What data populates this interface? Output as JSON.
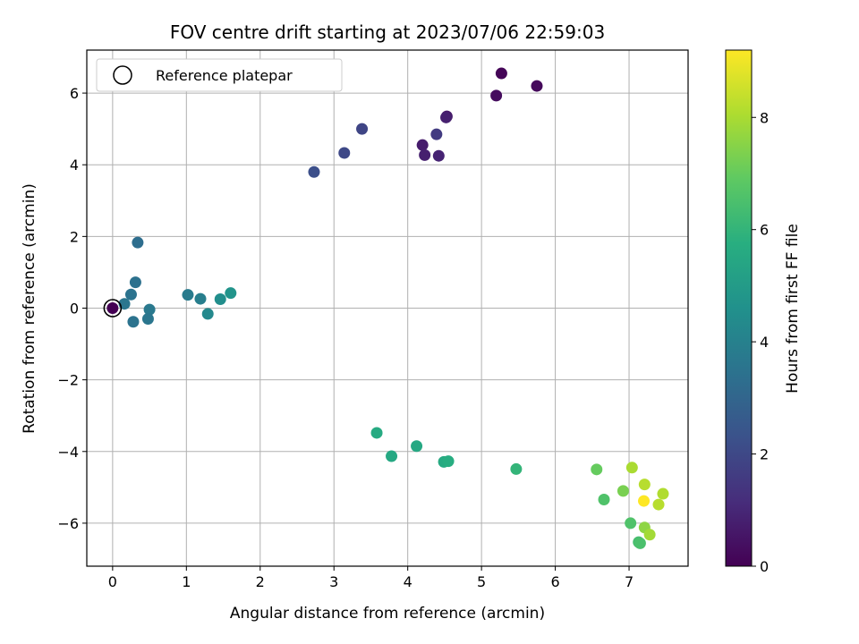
{
  "chart_data": {
    "type": "scatter",
    "title": "FOV centre drift starting at 2023/07/06 22:59:03",
    "xlabel": "Angular distance from reference (arcmin)",
    "ylabel": "Rotation from reference (arcmin)",
    "xlim": [
      -0.35,
      7.8
    ],
    "ylim": [
      -7.2,
      7.2
    ],
    "xticks": [
      0,
      1,
      2,
      3,
      4,
      5,
      6,
      7
    ],
    "yticks": [
      -6,
      -4,
      -2,
      0,
      2,
      4,
      6
    ],
    "xtick_labels": [
      "0",
      "1",
      "2",
      "3",
      "4",
      "5",
      "6",
      "7"
    ],
    "ytick_labels": [
      "−6",
      "−4",
      "−2",
      "0",
      "2",
      "4",
      "6"
    ],
    "grid": true,
    "legend": {
      "position": "top-left",
      "entries": [
        "Reference platepar"
      ]
    },
    "reference_point": {
      "x": 0.0,
      "y": 0.0
    },
    "colorbar": {
      "label": "Hours from first FF file",
      "colormap": "viridis",
      "range": [
        0,
        9.2
      ],
      "ticks": [
        0,
        2,
        4,
        6,
        8
      ],
      "tick_labels": [
        "0",
        "2",
        "4",
        "6",
        "8"
      ]
    },
    "points": [
      {
        "x": 0.0,
        "y": 0.0,
        "hours": 0.0
      },
      {
        "x": 5.27,
        "y": 6.55,
        "hours": 0.1
      },
      {
        "x": 5.75,
        "y": 6.2,
        "hours": 0.2
      },
      {
        "x": 5.2,
        "y": 5.93,
        "hours": 0.3
      },
      {
        "x": 4.53,
        "y": 5.35,
        "hours": 0.6
      },
      {
        "x": 4.52,
        "y": 5.32,
        "hours": 0.8
      },
      {
        "x": 4.2,
        "y": 4.55,
        "hours": 0.7
      },
      {
        "x": 4.23,
        "y": 4.27,
        "hours": 0.8
      },
      {
        "x": 4.42,
        "y": 4.25,
        "hours": 0.9
      },
      {
        "x": 4.39,
        "y": 4.85,
        "hours": 1.6
      },
      {
        "x": 3.38,
        "y": 5.0,
        "hours": 1.9
      },
      {
        "x": 3.14,
        "y": 4.33,
        "hours": 2.0
      },
      {
        "x": 2.73,
        "y": 3.8,
        "hours": 2.2
      },
      {
        "x": 0.34,
        "y": 1.83,
        "hours": 3.3
      },
      {
        "x": 0.31,
        "y": 0.72,
        "hours": 3.4
      },
      {
        "x": 0.25,
        "y": 0.38,
        "hours": 3.5
      },
      {
        "x": 0.16,
        "y": 0.12,
        "hours": 3.6
      },
      {
        "x": 0.5,
        "y": -0.04,
        "hours": 3.7
      },
      {
        "x": 0.28,
        "y": -0.38,
        "hours": 3.5
      },
      {
        "x": 0.48,
        "y": -0.3,
        "hours": 3.6
      },
      {
        "x": 1.02,
        "y": 0.37,
        "hours": 3.8
      },
      {
        "x": 1.19,
        "y": 0.26,
        "hours": 3.9
      },
      {
        "x": 1.29,
        "y": -0.16,
        "hours": 4.3
      },
      {
        "x": 1.46,
        "y": 0.25,
        "hours": 4.5
      },
      {
        "x": 1.6,
        "y": 0.42,
        "hours": 4.7
      },
      {
        "x": 3.58,
        "y": -3.48,
        "hours": 5.6
      },
      {
        "x": 3.78,
        "y": -4.13,
        "hours": 5.5
      },
      {
        "x": 4.12,
        "y": -3.85,
        "hours": 5.5
      },
      {
        "x": 4.49,
        "y": -4.29,
        "hours": 5.6
      },
      {
        "x": 4.55,
        "y": -4.27,
        "hours": 5.7
      },
      {
        "x": 5.47,
        "y": -4.49,
        "hours": 6.0
      },
      {
        "x": 6.56,
        "y": -4.5,
        "hours": 7.0
      },
      {
        "x": 6.66,
        "y": -5.34,
        "hours": 6.6
      },
      {
        "x": 6.92,
        "y": -5.1,
        "hours": 7.3
      },
      {
        "x": 7.04,
        "y": -4.45,
        "hours": 8.0
      },
      {
        "x": 7.21,
        "y": -4.92,
        "hours": 8.2
      },
      {
        "x": 7.46,
        "y": -5.18,
        "hours": 8.1
      },
      {
        "x": 7.4,
        "y": -5.48,
        "hours": 8.2
      },
      {
        "x": 7.2,
        "y": -5.38,
        "hours": 9.2
      },
      {
        "x": 7.02,
        "y": -6.0,
        "hours": 6.6
      },
      {
        "x": 7.21,
        "y": -6.12,
        "hours": 7.6
      },
      {
        "x": 7.28,
        "y": -6.32,
        "hours": 7.9
      },
      {
        "x": 7.13,
        "y": -6.53,
        "hours": 6.4
      },
      {
        "x": 7.15,
        "y": -6.56,
        "hours": 6.5
      }
    ]
  }
}
